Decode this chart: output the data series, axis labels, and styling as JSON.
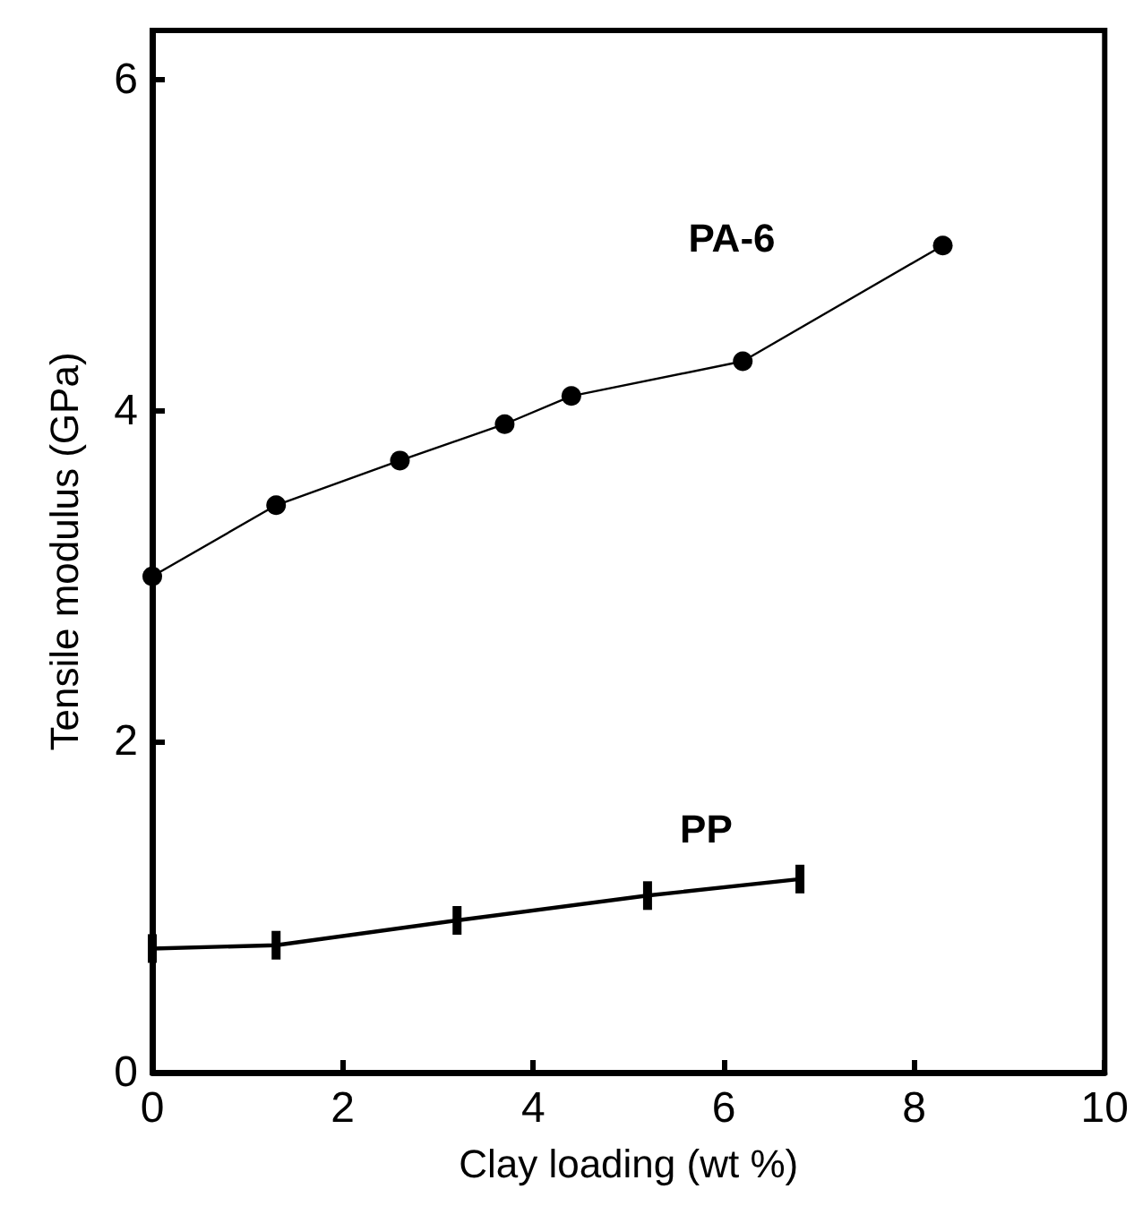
{
  "chart_data": {
    "type": "line",
    "xlabel": "Clay loading (wt %)",
    "ylabel": "Tensile modulus (GPa)",
    "xlim": [
      0,
      10
    ],
    "xticks": [
      0,
      2,
      4,
      6,
      8,
      10
    ],
    "ylim": [
      0,
      6.3
    ],
    "yticks": [
      0,
      2,
      4,
      6
    ],
    "grid": false,
    "legend": false,
    "series": [
      {
        "name": "PA-6",
        "color": "#000000",
        "marker": "circle",
        "x": [
          0,
          1.3,
          2.6,
          3.7,
          4.4,
          6.2,
          8.3
        ],
        "values": [
          3.0,
          3.43,
          3.7,
          3.92,
          4.09,
          4.3,
          5.0
        ]
      },
      {
        "name": "PP",
        "color": "#000000",
        "marker": "square",
        "x": [
          0,
          1.3,
          3.2,
          5.2,
          6.8
        ],
        "values": [
          0.75,
          0.77,
          0.92,
          1.07,
          1.17
        ]
      }
    ]
  }
}
